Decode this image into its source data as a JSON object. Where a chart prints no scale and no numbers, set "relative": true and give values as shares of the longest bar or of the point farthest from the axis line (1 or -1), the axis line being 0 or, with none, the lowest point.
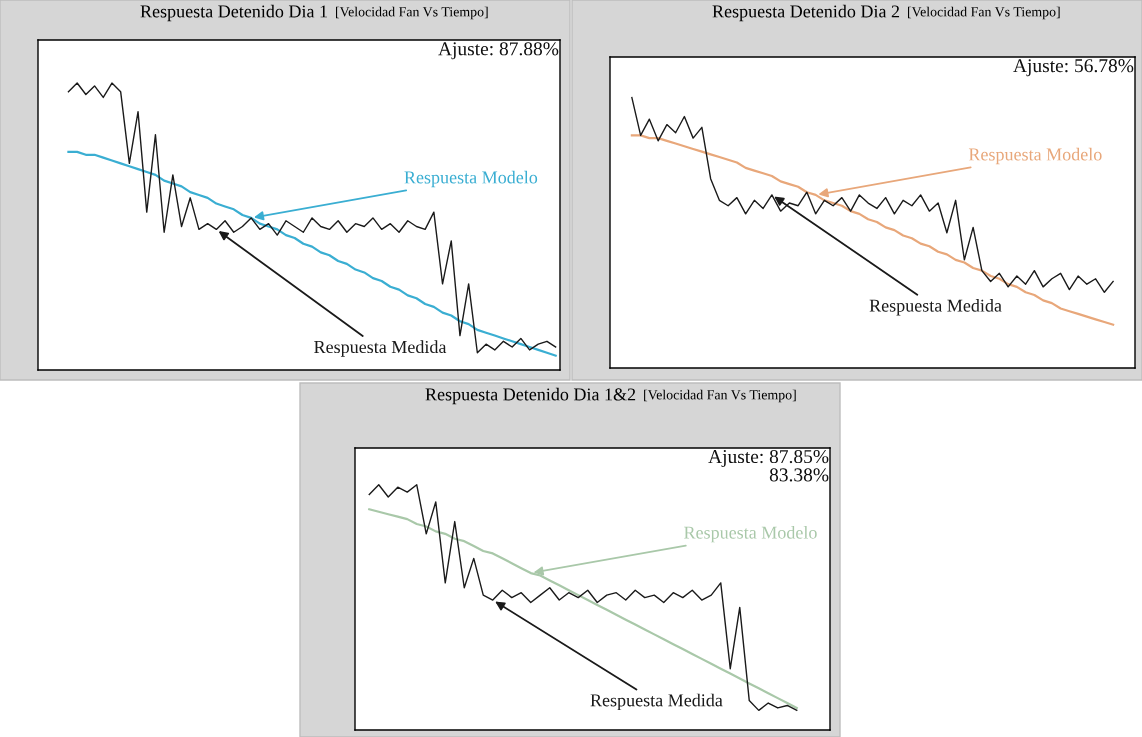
{
  "chart_data": [
    {
      "type": "line",
      "title": "Respuesta Detenido Dia 1",
      "subtitle": "[Velocidad Fan Vs Tiempo]",
      "relative": true,
      "grid": false,
      "annotations": [
        "Ajuste: 87.88%"
      ],
      "categories": [
        null,
        null,
        null,
        null,
        null,
        null,
        null,
        null,
        null,
        null,
        null,
        null,
        null,
        null,
        null,
        null,
        null,
        null,
        null,
        null,
        null,
        null,
        null,
        null,
        null,
        null,
        null,
        null,
        null,
        null,
        null,
        null,
        null,
        null,
        null,
        null,
        null,
        null,
        null,
        null,
        null,
        null,
        null,
        null,
        null,
        null,
        null,
        null,
        null,
        null,
        null,
        null,
        null,
        null,
        null,
        null,
        null,
        null,
        null,
        null
      ],
      "series": [
        {
          "name": "Respuesta Medida",
          "color": "#1a1a1a",
          "values": [
            null,
            null,
            null,
            0.97,
            1.0,
            0.96,
            0.99,
            0.95,
            1.0,
            0.97,
            0.72,
            0.9,
            0.55,
            0.82,
            0.48,
            0.68,
            0.5,
            0.6,
            0.49,
            0.51,
            0.49,
            0.52,
            0.48,
            0.5,
            0.53,
            0.49,
            0.51,
            0.47,
            0.52,
            0.5,
            0.48,
            0.53,
            0.5,
            0.49,
            0.52,
            0.48,
            0.51,
            0.5,
            0.53,
            0.49,
            0.51,
            0.48,
            0.52,
            0.5,
            0.49,
            0.55,
            0.3,
            0.45,
            0.12,
            0.3,
            0.06,
            0.09,
            0.07,
            0.1,
            0.08,
            0.11,
            0.07,
            0.09,
            0.1,
            0.08
          ]
        },
        {
          "name": "Respuesta Modelo",
          "color": "#3aaed2",
          "values": [
            null,
            null,
            null,
            0.76,
            0.76,
            0.75,
            0.75,
            0.74,
            0.73,
            0.72,
            0.71,
            0.7,
            0.69,
            0.68,
            0.66,
            0.65,
            0.64,
            0.62,
            0.61,
            0.6,
            0.58,
            0.57,
            0.56,
            0.54,
            0.53,
            0.51,
            0.5,
            0.49,
            0.47,
            0.46,
            0.44,
            0.43,
            0.41,
            0.4,
            0.38,
            0.37,
            0.35,
            0.34,
            0.32,
            0.31,
            0.29,
            0.28,
            0.26,
            0.25,
            0.23,
            0.22,
            0.2,
            0.19,
            0.17,
            0.16,
            0.14,
            0.13,
            0.12,
            0.11,
            0.1,
            0.09,
            0.08,
            0.07,
            0.06,
            0.05
          ]
        }
      ]
    },
    {
      "type": "line",
      "title": "Respuesta Detenido Dia 2",
      "subtitle": "[Velocidad Fan Vs Tiempo]",
      "relative": true,
      "grid": false,
      "annotations": [
        "Ajuste: 56.78%"
      ],
      "categories": [
        null,
        null,
        null,
        null,
        null,
        null,
        null,
        null,
        null,
        null,
        null,
        null,
        null,
        null,
        null,
        null,
        null,
        null,
        null,
        null,
        null,
        null,
        null,
        null,
        null,
        null,
        null,
        null,
        null,
        null,
        null,
        null,
        null,
        null,
        null,
        null,
        null,
        null,
        null,
        null,
        null,
        null,
        null,
        null,
        null,
        null,
        null,
        null,
        null,
        null,
        null,
        null,
        null,
        null,
        null,
        null,
        null,
        null,
        null,
        null
      ],
      "series": [
        {
          "name": "Respuesta Medida",
          "color": "#1a1a1a",
          "values": [
            null,
            null,
            1.0,
            0.86,
            0.92,
            0.84,
            0.9,
            0.87,
            0.93,
            0.85,
            0.89,
            0.7,
            0.62,
            0.6,
            0.63,
            0.57,
            0.62,
            0.59,
            0.64,
            0.58,
            0.61,
            0.6,
            0.65,
            0.57,
            0.62,
            0.6,
            0.63,
            0.58,
            0.64,
            0.61,
            0.59,
            0.63,
            0.57,
            0.62,
            0.6,
            0.64,
            0.58,
            0.61,
            0.5,
            0.62,
            0.4,
            0.52,
            0.36,
            0.32,
            0.35,
            0.3,
            0.34,
            0.31,
            0.36,
            0.3,
            0.33,
            0.35,
            0.29,
            0.34,
            0.31,
            0.33,
            0.28,
            0.32,
            null,
            null
          ]
        },
        {
          "name": "Respuesta Modelo",
          "color": "#e8a77a",
          "values": [
            null,
            null,
            0.86,
            0.86,
            0.85,
            0.85,
            0.84,
            0.83,
            0.82,
            0.81,
            0.8,
            0.79,
            0.78,
            0.77,
            0.76,
            0.74,
            0.73,
            0.72,
            0.71,
            0.69,
            0.68,
            0.67,
            0.65,
            0.64,
            0.62,
            0.61,
            0.6,
            0.58,
            0.57,
            0.55,
            0.54,
            0.52,
            0.51,
            0.49,
            0.48,
            0.46,
            0.45,
            0.43,
            0.42,
            0.4,
            0.39,
            0.37,
            0.36,
            0.34,
            0.33,
            0.31,
            0.3,
            0.28,
            0.27,
            0.25,
            0.24,
            0.22,
            0.21,
            0.2,
            0.19,
            0.18,
            0.17,
            0.16,
            null,
            null
          ]
        }
      ]
    },
    {
      "type": "line",
      "title": "Respuesta Detenido Dia 1&2",
      "subtitle": "[Velocidad Fan Vs Tiempo]",
      "relative": true,
      "grid": false,
      "annotations": [
        "Ajuste: 87.85%",
        "83.38%"
      ],
      "categories": [
        null,
        null,
        null,
        null,
        null,
        null,
        null,
        null,
        null,
        null,
        null,
        null,
        null,
        null,
        null,
        null,
        null,
        null,
        null,
        null,
        null,
        null,
        null,
        null,
        null,
        null,
        null,
        null,
        null,
        null,
        null,
        null,
        null,
        null,
        null,
        null,
        null,
        null,
        null,
        null,
        null,
        null,
        null,
        null,
        null,
        null,
        null,
        null,
        null,
        null
      ],
      "series": [
        {
          "name": "Respuesta Medida",
          "color": "#1a1a1a",
          "values": [
            null,
            0.96,
            1.0,
            0.95,
            0.99,
            0.97,
            1.0,
            0.8,
            0.93,
            0.6,
            0.85,
            0.58,
            0.7,
            0.55,
            0.53,
            0.57,
            0.54,
            0.56,
            0.52,
            0.55,
            0.58,
            0.53,
            0.56,
            0.54,
            0.57,
            0.52,
            0.55,
            0.56,
            0.53,
            0.57,
            0.54,
            0.55,
            0.52,
            0.56,
            0.54,
            0.57,
            0.53,
            0.55,
            0.6,
            0.25,
            0.5,
            0.12,
            0.08,
            0.11,
            0.09,
            0.1,
            0.08,
            null,
            null,
            null
          ]
        },
        {
          "name": "Respuesta Modelo",
          "color": "#a9c8a9",
          "values": [
            null,
            0.9,
            0.89,
            0.88,
            0.87,
            0.86,
            0.84,
            0.83,
            0.81,
            0.8,
            0.78,
            0.77,
            0.75,
            0.73,
            0.72,
            0.7,
            0.68,
            0.66,
            0.64,
            0.63,
            0.61,
            0.59,
            0.57,
            0.55,
            0.53,
            0.51,
            0.49,
            0.47,
            0.45,
            0.43,
            0.41,
            0.39,
            0.37,
            0.35,
            0.33,
            0.31,
            0.29,
            0.27,
            0.25,
            0.23,
            0.21,
            0.19,
            0.17,
            0.15,
            0.13,
            0.11,
            0.09,
            null,
            null,
            null
          ]
        }
      ]
    }
  ]
}
